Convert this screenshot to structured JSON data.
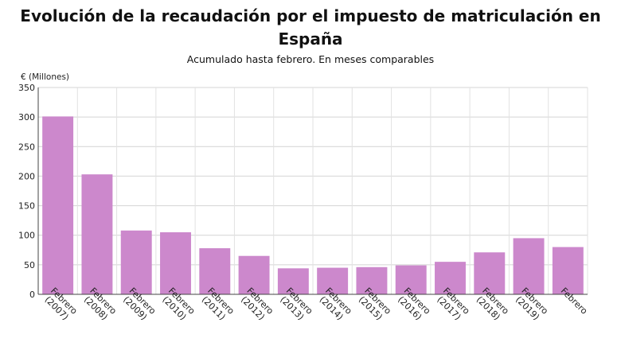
{
  "title": "Evolución de la recaudación por el impuesto de matriculación en España",
  "subtitle": "Acumulado hasta febrero. En meses comparables",
  "chart_data": {
    "type": "bar",
    "title": "Evolución de la recaudación por el impuesto de matriculación en España",
    "subtitle": "Acumulado hasta febrero. En meses comparables",
    "ylabel": "€ (Millones)",
    "xlabel": "",
    "ylim": [
      0,
      350
    ],
    "yticks": [
      0,
      50,
      100,
      150,
      200,
      250,
      300,
      350
    ],
    "grid": true,
    "bar_color": "#cc88cc",
    "categories": [
      [
        "Febrero",
        "(2007)"
      ],
      [
        "Febrero",
        "(2008)"
      ],
      [
        "Febrero",
        "(2009)"
      ],
      [
        "Febrero",
        "(2010)"
      ],
      [
        "Febrero",
        "(2011)"
      ],
      [
        "Febrero",
        "(2012)"
      ],
      [
        "Febrero",
        "(2013)"
      ],
      [
        "Febrero",
        "(2014)"
      ],
      [
        "Febrero",
        "(2015)"
      ],
      [
        "Febrero",
        "(2016)"
      ],
      [
        "Febrero",
        "(2017)"
      ],
      [
        "Febrero",
        "(2018)"
      ],
      [
        "Febrero",
        "(2019)"
      ],
      [
        "Febrero"
      ]
    ],
    "values": [
      301,
      203,
      108,
      105,
      78,
      65,
      44,
      45,
      46,
      49,
      55,
      71,
      95,
      80
    ]
  }
}
